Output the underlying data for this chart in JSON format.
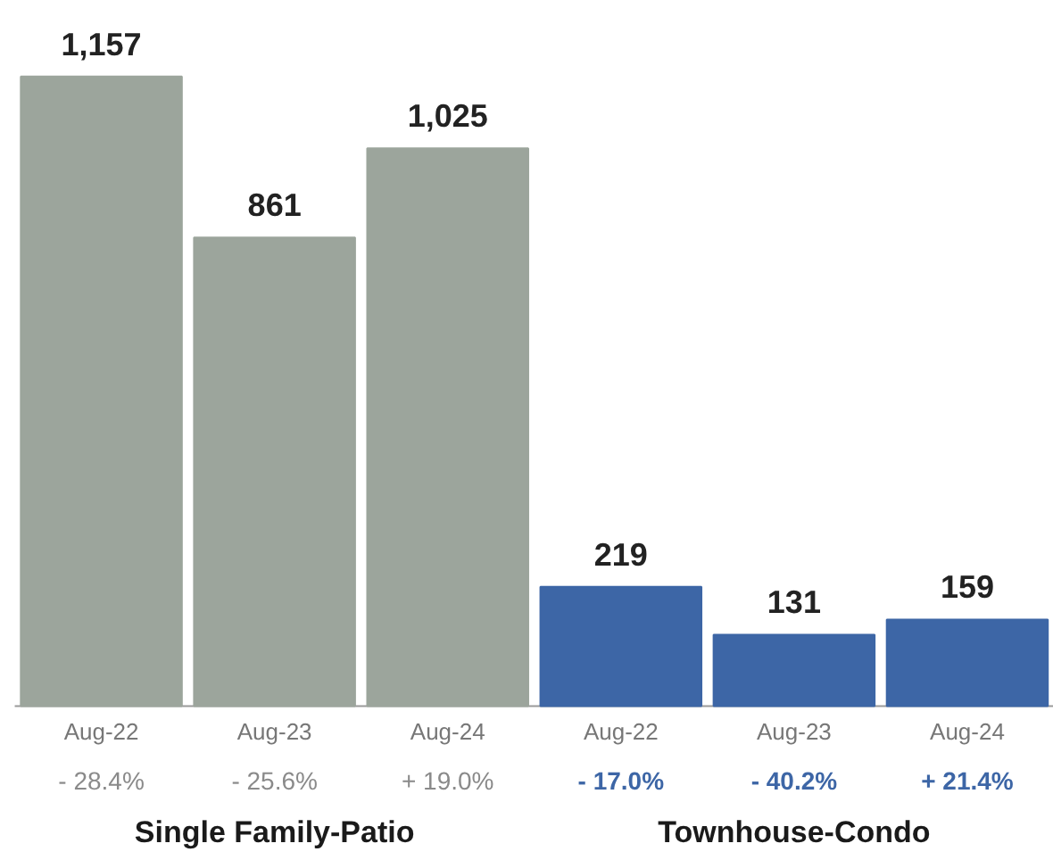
{
  "chart_data": {
    "type": "bar",
    "categories": [
      "Aug-22",
      "Aug-23",
      "Aug-24",
      "Aug-22",
      "Aug-23",
      "Aug-24"
    ],
    "series": [
      {
        "color": "#9ca59c",
        "values": [
          1157,
          861,
          1025,
          null,
          null,
          null
        ],
        "value_labels": [
          "1,157",
          "861",
          "1,025",
          null,
          null,
          null
        ]
      },
      {
        "color": "#3d66a6",
        "values": [
          null,
          null,
          null,
          219,
          131,
          159
        ],
        "value_labels": [
          null,
          null,
          null,
          "219",
          "131",
          "159"
        ]
      }
    ],
    "annotations": [
      "- 28.4%",
      "- 25.6%",
      "+ 19.0%",
      "- 17.0%",
      "- 40.2%",
      "+ 21.4%",
      "Single Family-Patio",
      "Townhouse-Condo"
    ]
  }
}
